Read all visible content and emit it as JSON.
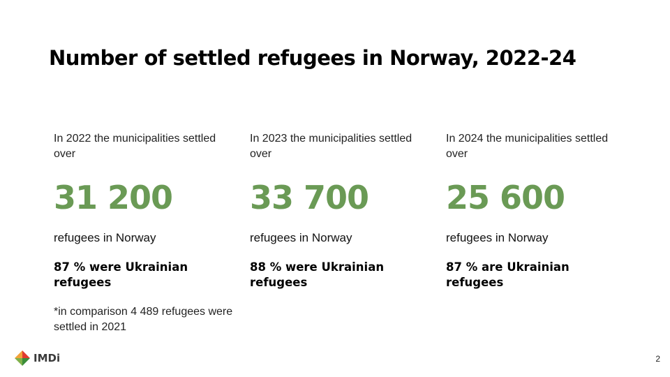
{
  "slide": {
    "title": "Number of settled refugees in Norway, 2022-24",
    "page_number": "2"
  },
  "columns": [
    {
      "intro": "In 2022 the municipalities settled over",
      "number": "31 200",
      "subtext": "refugees in Norway",
      "share": "87 % were Ukrainian refugees",
      "footnote": "*in comparison 4 489 refugees were settled in 2021"
    },
    {
      "intro": "In 2023 the municipalities settled over",
      "number": "33 700",
      "subtext": "refugees in Norway",
      "share": "88 % were Ukrainian refugees"
    },
    {
      "intro": "In 2024 the municipalities settled over",
      "number": "25 600",
      "subtext": "refugees in Norway",
      "share": "87 % are Ukrainian refugees"
    }
  ],
  "logo": {
    "text": "IMDi",
    "icon": "imdi-diamond-logo-icon",
    "colors": [
      "#e03a2f",
      "#f2a33a",
      "#7fb04a",
      "#3b8d3a"
    ]
  },
  "colors": {
    "accent_green": "#6a9a55",
    "text": "#000000"
  }
}
